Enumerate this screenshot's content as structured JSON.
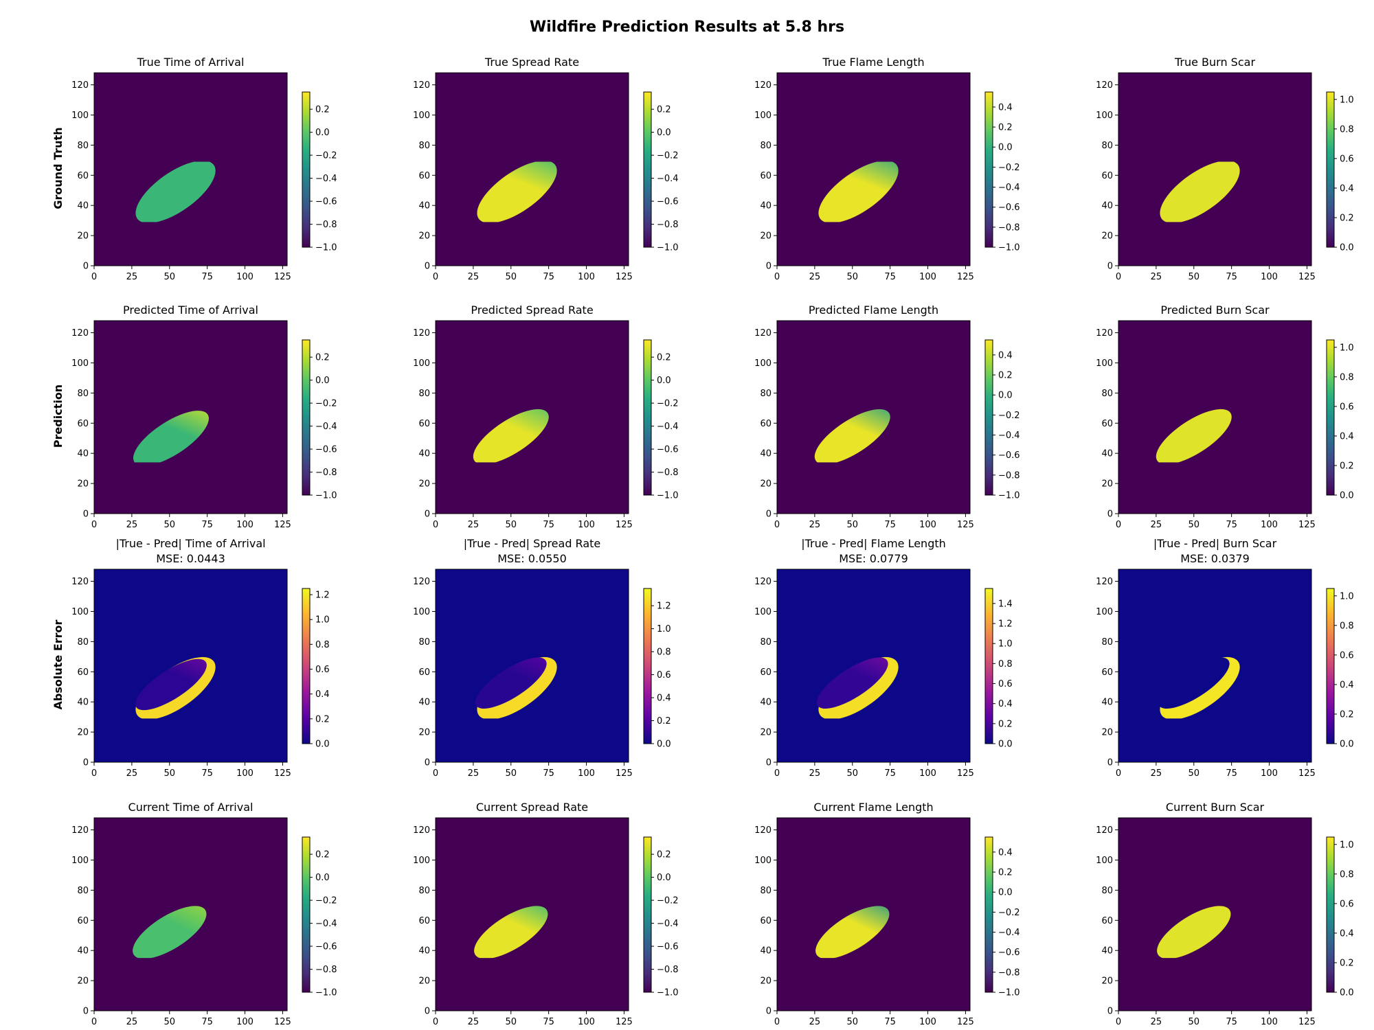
{
  "figure": {
    "title": "Wildfire Prediction Results at 5.8 hrs"
  },
  "row_labels": [
    "Ground Truth",
    "Prediction",
    "Absolute Error",
    ""
  ],
  "colormaps": {
    "viridis": [
      "#440154",
      "#472d7b",
      "#3b528b",
      "#2c728e",
      "#21918c",
      "#28ae80",
      "#5ec962",
      "#addc30",
      "#fde725"
    ],
    "plasma": [
      "#0d0887",
      "#5c01a6",
      "#9c179e",
      "#cc4778",
      "#ed7953",
      "#fdb42f",
      "#f0f921"
    ]
  },
  "chart_data": [
    {
      "type": "heatmap",
      "title": "True Time of Arrival",
      "row": 0,
      "col": 0,
      "cmap": "viridis",
      "xlim": [
        0,
        128
      ],
      "ylim": [
        0,
        128
      ],
      "xticks": [
        0,
        25,
        50,
        75,
        100,
        125
      ],
      "yticks": [
        0,
        20,
        40,
        60,
        80,
        100,
        120
      ],
      "clim": [
        -1.0,
        0.35
      ],
      "cbar_ticks": [
        0.2,
        0.0,
        -0.2,
        -0.4,
        -0.6,
        -0.8,
        -1.0
      ],
      "background_value": -1.0,
      "field": {
        "shape": "ellipse",
        "cx": 54,
        "cy": 49,
        "a": 31,
        "b": 13,
        "angle_deg": 35,
        "clip": {
          "xmin": 25,
          "ymin": 29,
          "xmax": 83,
          "ymax": 69
        },
        "value": -0.1,
        "tip_value": -0.1
      }
    },
    {
      "type": "heatmap",
      "title": "True Spread Rate",
      "row": 0,
      "col": 1,
      "cmap": "viridis",
      "xlim": [
        0,
        128
      ],
      "ylim": [
        0,
        128
      ],
      "xticks": [
        0,
        25,
        50,
        75,
        100,
        125
      ],
      "yticks": [
        0,
        20,
        40,
        60,
        80,
        100,
        120
      ],
      "clim": [
        -1.0,
        0.35
      ],
      "cbar_ticks": [
        0.2,
        0.0,
        -0.2,
        -0.4,
        -0.6,
        -0.8,
        -1.0
      ],
      "background_value": -1.0,
      "field": {
        "shape": "ellipse",
        "cx": 54,
        "cy": 49,
        "a": 31,
        "b": 13,
        "angle_deg": 35,
        "clip": {
          "xmin": 25,
          "ymin": 29,
          "xmax": 83,
          "ymax": 69
        },
        "value": 0.3,
        "tip_value": -0.1
      }
    },
    {
      "type": "heatmap",
      "title": "True Flame Length",
      "row": 0,
      "col": 2,
      "cmap": "viridis",
      "xlim": [
        0,
        128
      ],
      "ylim": [
        0,
        128
      ],
      "xticks": [
        0,
        25,
        50,
        75,
        100,
        125
      ],
      "yticks": [
        0,
        20,
        40,
        60,
        80,
        100,
        120
      ],
      "clim": [
        -1.0,
        0.55
      ],
      "cbar_ticks": [
        0.4,
        0.2,
        0.0,
        -0.2,
        -0.4,
        -0.6,
        -0.8,
        -1.0
      ],
      "background_value": -1.0,
      "field": {
        "shape": "ellipse",
        "cx": 54,
        "cy": 49,
        "a": 31,
        "b": 13,
        "angle_deg": 35,
        "clip": {
          "xmin": 25,
          "ymin": 29,
          "xmax": 83,
          "ymax": 69
        },
        "value": 0.5,
        "tip_value": -0.1
      }
    },
    {
      "type": "heatmap",
      "title": "True Burn Scar",
      "row": 0,
      "col": 3,
      "cmap": "viridis",
      "xlim": [
        0,
        128
      ],
      "ylim": [
        0,
        128
      ],
      "xticks": [
        0,
        25,
        50,
        75,
        100,
        125
      ],
      "yticks": [
        0,
        20,
        40,
        60,
        80,
        100,
        120
      ],
      "clim": [
        0.0,
        1.05
      ],
      "cbar_ticks": [
        1.0,
        0.8,
        0.6,
        0.4,
        0.2,
        0.0
      ],
      "background_value": 0.0,
      "field": {
        "shape": "ellipse",
        "cx": 54,
        "cy": 49,
        "a": 31,
        "b": 13,
        "angle_deg": 35,
        "clip": {
          "xmin": 25,
          "ymin": 29,
          "xmax": 83,
          "ymax": 69
        },
        "value": 1.0,
        "tip_value": 1.0
      }
    },
    {
      "type": "heatmap",
      "title": "Predicted Time of Arrival",
      "row": 1,
      "col": 0,
      "cmap": "viridis",
      "xlim": [
        0,
        128
      ],
      "ylim": [
        0,
        128
      ],
      "xticks": [
        0,
        25,
        50,
        75,
        100,
        125
      ],
      "yticks": [
        0,
        20,
        40,
        60,
        80,
        100,
        120
      ],
      "clim": [
        -1.0,
        0.35
      ],
      "cbar_ticks": [
        0.2,
        0.0,
        -0.2,
        -0.4,
        -0.6,
        -0.8,
        -1.0
      ],
      "background_value": -1.0,
      "field": {
        "shape": "ellipse",
        "cx": 51,
        "cy": 50,
        "a": 29,
        "b": 11,
        "angle_deg": 33,
        "clip": {
          "xmin": 23,
          "ymin": 34,
          "xmax": 81,
          "ymax": 71
        },
        "value": -0.1,
        "tip_value": 0.25
      }
    },
    {
      "type": "heatmap",
      "title": "Predicted Spread Rate",
      "row": 1,
      "col": 1,
      "cmap": "viridis",
      "xlim": [
        0,
        128
      ],
      "ylim": [
        0,
        128
      ],
      "xticks": [
        0,
        25,
        50,
        75,
        100,
        125
      ],
      "yticks": [
        0,
        20,
        40,
        60,
        80,
        100,
        120
      ],
      "clim": [
        -1.0,
        0.35
      ],
      "cbar_ticks": [
        0.2,
        0.0,
        -0.2,
        -0.4,
        -0.6,
        -0.8,
        -1.0
      ],
      "background_value": -1.0,
      "field": {
        "shape": "ellipse",
        "cx": 50,
        "cy": 51,
        "a": 29,
        "b": 11,
        "angle_deg": 33,
        "clip": {
          "xmin": 23,
          "ymin": 34,
          "xmax": 81,
          "ymax": 71
        },
        "value": 0.3,
        "tip_value": -0.05
      }
    },
    {
      "type": "heatmap",
      "title": "Predicted Flame Length",
      "row": 1,
      "col": 2,
      "cmap": "viridis",
      "xlim": [
        0,
        128
      ],
      "ylim": [
        0,
        128
      ],
      "xticks": [
        0,
        25,
        50,
        75,
        100,
        125
      ],
      "yticks": [
        0,
        20,
        40,
        60,
        80,
        100,
        120
      ],
      "clim": [
        -1.0,
        0.55
      ],
      "cbar_ticks": [
        0.4,
        0.2,
        0.0,
        -0.2,
        -0.4,
        -0.6,
        -0.8,
        -1.0
      ],
      "background_value": -1.0,
      "field": {
        "shape": "ellipse",
        "cx": 50,
        "cy": 51,
        "a": 29,
        "b": 11,
        "angle_deg": 33,
        "clip": {
          "xmin": 23,
          "ymin": 34,
          "xmax": 81,
          "ymax": 71
        },
        "value": 0.5,
        "tip_value": -0.15
      }
    },
    {
      "type": "heatmap",
      "title": "Predicted Burn Scar",
      "row": 1,
      "col": 3,
      "cmap": "viridis",
      "xlim": [
        0,
        128
      ],
      "ylim": [
        0,
        128
      ],
      "xticks": [
        0,
        25,
        50,
        75,
        100,
        125
      ],
      "yticks": [
        0,
        20,
        40,
        60,
        80,
        100,
        120
      ],
      "clim": [
        0.0,
        1.05
      ],
      "cbar_ticks": [
        1.0,
        0.8,
        0.6,
        0.4,
        0.2,
        0.0
      ],
      "background_value": 0.0,
      "field": {
        "shape": "ellipse",
        "cx": 50,
        "cy": 51,
        "a": 29,
        "b": 11,
        "angle_deg": 33,
        "clip": {
          "xmin": 23,
          "ymin": 34,
          "xmax": 81,
          "ymax": 71
        },
        "value": 1.0,
        "tip_value": 1.0
      }
    },
    {
      "type": "heatmap",
      "title": "|True - Pred| Time of Arrival",
      "subtitle": "MSE: 0.0443",
      "row": 2,
      "col": 0,
      "cmap": "plasma",
      "xlim": [
        0,
        128
      ],
      "ylim": [
        0,
        128
      ],
      "xticks": [
        0,
        25,
        50,
        75,
        100,
        125
      ],
      "yticks": [
        0,
        20,
        40,
        60,
        80,
        100,
        120
      ],
      "clim": [
        0.0,
        1.25
      ],
      "cbar_ticks": [
        1.2,
        1.0,
        0.8,
        0.6,
        0.4,
        0.2,
        0.0
      ],
      "background_value": 0.0,
      "field": {
        "shape": "error",
        "cx": 54,
        "cy": 49,
        "a": 31,
        "b": 13,
        "pcx": 51,
        "pcy": 50,
        "pa": 29,
        "pb": 11,
        "angle_deg": 35,
        "pangle_deg": 33,
        "clip": {
          "xmin": 25,
          "ymin": 29,
          "xmax": 83,
          "ymax": 71
        },
        "value": 1.15,
        "inner_value": 0.08,
        "tip_value": 0.3
      }
    },
    {
      "type": "heatmap",
      "title": "|True - Pred| Spread Rate",
      "subtitle": "MSE: 0.0550",
      "row": 2,
      "col": 1,
      "cmap": "plasma",
      "xlim": [
        0,
        128
      ],
      "ylim": [
        0,
        128
      ],
      "xticks": [
        0,
        25,
        50,
        75,
        100,
        125
      ],
      "yticks": [
        0,
        20,
        40,
        60,
        80,
        100,
        120
      ],
      "clim": [
        0.0,
        1.35
      ],
      "cbar_ticks": [
        1.2,
        1.0,
        0.8,
        0.6,
        0.4,
        0.2,
        0.0
      ],
      "background_value": 0.0,
      "field": {
        "shape": "error",
        "cx": 54,
        "cy": 49,
        "a": 31,
        "b": 13,
        "pcx": 50,
        "pcy": 51,
        "pa": 29,
        "pb": 11,
        "angle_deg": 35,
        "pangle_deg": 33,
        "clip": {
          "xmin": 25,
          "ymin": 29,
          "xmax": 83,
          "ymax": 71
        },
        "value": 1.25,
        "inner_value": 0.08,
        "tip_value": 0.25
      }
    },
    {
      "type": "heatmap",
      "title": "|True - Pred| Flame Length",
      "subtitle": "MSE: 0.0779",
      "row": 2,
      "col": 2,
      "cmap": "plasma",
      "xlim": [
        0,
        128
      ],
      "ylim": [
        0,
        128
      ],
      "xticks": [
        0,
        25,
        50,
        75,
        100,
        125
      ],
      "yticks": [
        0,
        20,
        40,
        60,
        80,
        100,
        120
      ],
      "clim": [
        0.0,
        1.55
      ],
      "cbar_ticks": [
        1.4,
        1.2,
        1.0,
        0.8,
        0.6,
        0.4,
        0.2,
        0.0
      ],
      "background_value": 0.0,
      "field": {
        "shape": "error",
        "cx": 54,
        "cy": 49,
        "a": 31,
        "b": 13,
        "pcx": 50,
        "pcy": 51,
        "pa": 29,
        "pb": 11,
        "angle_deg": 35,
        "pangle_deg": 33,
        "clip": {
          "xmin": 25,
          "ymin": 29,
          "xmax": 83,
          "ymax": 71
        },
        "value": 1.45,
        "inner_value": 0.12,
        "tip_value": 0.4
      }
    },
    {
      "type": "heatmap",
      "title": "|True - Pred| Burn Scar",
      "subtitle": "MSE: 0.0379",
      "row": 2,
      "col": 3,
      "cmap": "plasma",
      "xlim": [
        0,
        128
      ],
      "ylim": [
        0,
        128
      ],
      "xticks": [
        0,
        25,
        50,
        75,
        100,
        125
      ],
      "yticks": [
        0,
        20,
        40,
        60,
        80,
        100,
        120
      ],
      "clim": [
        0.0,
        1.05
      ],
      "cbar_ticks": [
        1.0,
        0.8,
        0.6,
        0.4,
        0.2,
        0.0
      ],
      "background_value": 0.0,
      "field": {
        "shape": "error",
        "cx": 54,
        "cy": 49,
        "a": 31,
        "b": 13,
        "pcx": 50,
        "pcy": 51,
        "pa": 29,
        "pb": 11,
        "angle_deg": 35,
        "pangle_deg": 33,
        "clip": {
          "xmin": 25,
          "ymin": 29,
          "xmax": 83,
          "ymax": 71
        },
        "value": 1.0,
        "inner_value": 0.0,
        "tip_value": 0.0
      }
    },
    {
      "type": "heatmap",
      "title": "Current Time of Arrival",
      "row": 3,
      "col": 0,
      "cmap": "viridis",
      "xlim": [
        0,
        128
      ],
      "ylim": [
        0,
        128
      ],
      "xticks": [
        0,
        25,
        50,
        75,
        100,
        125
      ],
      "yticks": [
        0,
        20,
        40,
        60,
        80,
        100,
        120
      ],
      "clim": [
        -1.0,
        0.35
      ],
      "cbar_ticks": [
        0.2,
        0.0,
        -0.2,
        -0.4,
        -0.6,
        -0.8,
        -1.0
      ],
      "background_value": -1.0,
      "field": {
        "shape": "ellipse",
        "cx": 50,
        "cy": 52,
        "a": 28,
        "b": 11,
        "angle_deg": 32,
        "clip": {
          "xmin": 25,
          "ymin": 35,
          "xmax": 80,
          "ymax": 71
        },
        "value": -0.05,
        "tip_value": 0.15
      }
    },
    {
      "type": "heatmap",
      "title": "Current Spread Rate",
      "row": 3,
      "col": 1,
      "cmap": "viridis",
      "xlim": [
        0,
        128
      ],
      "ylim": [
        0,
        128
      ],
      "xticks": [
        0,
        25,
        50,
        75,
        100,
        125
      ],
      "yticks": [
        0,
        20,
        40,
        60,
        80,
        100,
        120
      ],
      "clim": [
        -1.0,
        0.35
      ],
      "cbar_ticks": [
        0.2,
        0.0,
        -0.2,
        -0.4,
        -0.6,
        -0.8,
        -1.0
      ],
      "background_value": -1.0,
      "field": {
        "shape": "ellipse",
        "cx": 50,
        "cy": 52,
        "a": 28,
        "b": 11,
        "angle_deg": 32,
        "clip": {
          "xmin": 25,
          "ymin": 35,
          "xmax": 80,
          "ymax": 71
        },
        "value": 0.3,
        "tip_value": -0.1
      }
    },
    {
      "type": "heatmap",
      "title": "Current Flame Length",
      "row": 3,
      "col": 2,
      "cmap": "viridis",
      "xlim": [
        0,
        128
      ],
      "ylim": [
        0,
        128
      ],
      "xticks": [
        0,
        25,
        50,
        75,
        100,
        125
      ],
      "yticks": [
        0,
        20,
        40,
        60,
        80,
        100,
        120
      ],
      "clim": [
        -1.0,
        0.55
      ],
      "cbar_ticks": [
        0.4,
        0.2,
        0.0,
        -0.2,
        -0.4,
        -0.6,
        -0.8,
        -1.0
      ],
      "background_value": -1.0,
      "field": {
        "shape": "ellipse",
        "cx": 50,
        "cy": 52,
        "a": 28,
        "b": 11,
        "angle_deg": 32,
        "clip": {
          "xmin": 25,
          "ymin": 35,
          "xmax": 80,
          "ymax": 71
        },
        "value": 0.5,
        "tip_value": -0.2
      }
    },
    {
      "type": "heatmap",
      "title": "Current Burn Scar",
      "row": 3,
      "col": 3,
      "cmap": "viridis",
      "xlim": [
        0,
        128
      ],
      "ylim": [
        0,
        128
      ],
      "xticks": [
        0,
        25,
        50,
        75,
        100,
        125
      ],
      "yticks": [
        0,
        20,
        40,
        60,
        80,
        100,
        120
      ],
      "clim": [
        0.0,
        1.05
      ],
      "cbar_ticks": [
        1.0,
        0.8,
        0.6,
        0.4,
        0.2,
        0.0
      ],
      "background_value": 0.0,
      "field": {
        "shape": "ellipse",
        "cx": 50,
        "cy": 52,
        "a": 28,
        "b": 11,
        "angle_deg": 32,
        "clip": {
          "xmin": 25,
          "ymin": 35,
          "xmax": 80,
          "ymax": 71
        },
        "value": 1.0,
        "tip_value": 1.0
      }
    }
  ]
}
